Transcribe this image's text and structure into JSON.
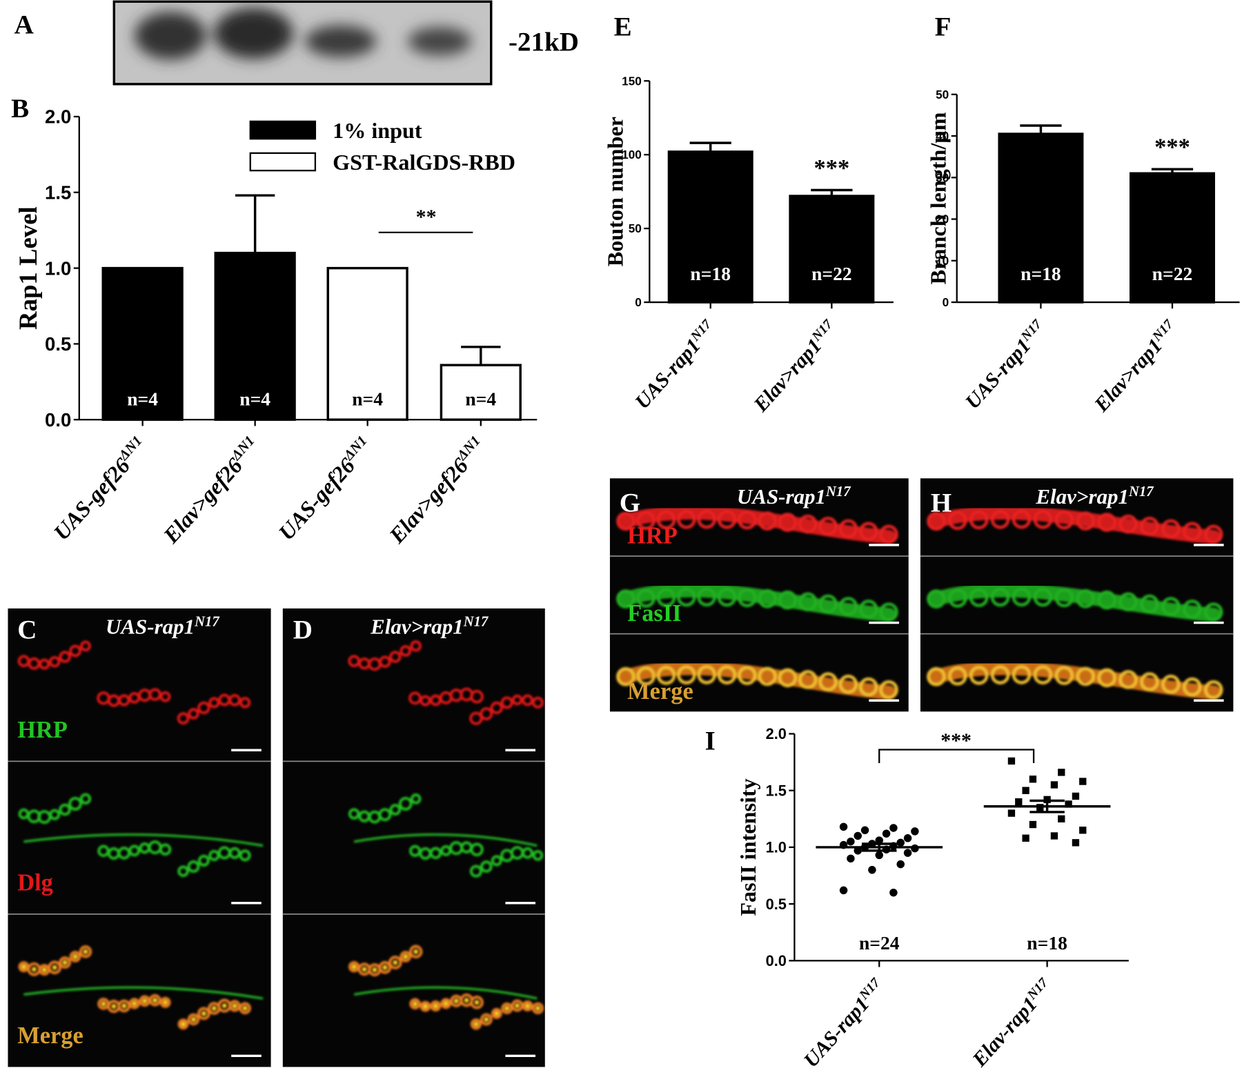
{
  "panel_letters": [
    "A",
    "B",
    "C",
    "D",
    "E",
    "F",
    "G",
    "H",
    "I"
  ],
  "blot": {
    "marker": "-21kD"
  },
  "images": [
    {
      "title": "UAS-rap1",
      "title_sup": "N17",
      "channels": [
        "HRP",
        "Dlg",
        "Merge"
      ]
    },
    {
      "title": "Elav>rap1",
      "title_sup": "N17"
    },
    {
      "title": "UAS-rap1",
      "title_sup": "N17",
      "channels": [
        "HRP",
        "FasII",
        "Merge"
      ]
    },
    {
      "title": "Elav>rap1",
      "title_sup": "N17"
    }
  ],
  "chart_data": [
    {
      "type": "bar",
      "ylabel": "Rap1 Level",
      "categories": [
        "UAS-gef26",
        "Elav>gef26",
        "UAS-gef26",
        "Elav>gef26"
      ],
      "category_sup": [
        "ΔN1",
        "ΔN1",
        "ΔN1",
        "ΔN1"
      ],
      "series": [
        {
          "name": "1% input",
          "color": "#000000",
          "values": [
            1.0,
            1.1,
            null,
            null
          ],
          "errors": [
            null,
            0.38,
            null,
            null
          ]
        },
        {
          "name": "GST-RalGDS-RBD",
          "color": "#ffffff",
          "values": [
            null,
            null,
            1.0,
            0.36
          ],
          "errors": [
            null,
            null,
            null,
            0.12
          ]
        }
      ],
      "n_labels": [
        "n=4",
        "n=4",
        "n=4",
        "n=4"
      ],
      "significance": "**",
      "ylim": [
        0,
        2.0
      ],
      "yticks": [
        {
          "value": 0,
          "label": "0.0"
        },
        {
          "value": 0.5,
          "label": "0.5"
        },
        {
          "value": 1.0,
          "label": "1.0"
        },
        {
          "value": 1.5,
          "label": "1.5"
        },
        {
          "value": 2.0,
          "label": "2.0"
        }
      ],
      "legend": "top-right"
    },
    {
      "type": "bar",
      "ylabel": "Bouton number",
      "categories": [
        "UAS-rap1",
        "Elav>rap1"
      ],
      "category_sup": [
        "N17",
        "N17"
      ],
      "series": [
        {
          "color": "#000000",
          "values": [
            102,
            72
          ],
          "errors": [
            6,
            4
          ]
        }
      ],
      "n_labels": [
        "n=18",
        "n=22"
      ],
      "significance": "***",
      "ylim": [
        0,
        150
      ],
      "yticks": [
        0,
        50,
        100,
        150
      ]
    },
    {
      "type": "bar",
      "ylabel": "Branch length/μm",
      "categories": [
        "UAS-rap1",
        "Elav>rap1"
      ],
      "category_sup": [
        "N17",
        "N17"
      ],
      "series": [
        {
          "color": "#000000",
          "values": [
            40.5,
            31
          ],
          "errors": [
            2,
            1
          ]
        }
      ],
      "n_labels": [
        "n=18",
        "n=22"
      ],
      "significance": "***",
      "ylim": [
        0,
        50
      ],
      "yticks": [
        0,
        10,
        20,
        30,
        40,
        50
      ]
    },
    {
      "type": "dotplot",
      "ylabel": "FasII intensity",
      "categories": [
        "UAS-rap1",
        "Elav-rap1"
      ],
      "category_sup": [
        "N17",
        "N17"
      ],
      "groups": [
        {
          "marker": "circle",
          "color": "#000000",
          "mean": 1.0,
          "sem": 0.03,
          "values": [
            1.18,
            1.17,
            1.15,
            1.14,
            1.12,
            1.1,
            1.08,
            1.06,
            1.05,
            1.04,
            1.03,
            1.02,
            1.01,
            1.0,
            0.99,
            0.98,
            0.97,
            0.95,
            0.93,
            0.9,
            0.85,
            0.8,
            0.62,
            0.6
          ]
        },
        {
          "marker": "square",
          "color": "#000000",
          "mean": 1.36,
          "sem": 0.05,
          "values": [
            1.76,
            1.66,
            1.6,
            1.58,
            1.55,
            1.5,
            1.45,
            1.42,
            1.4,
            1.38,
            1.35,
            1.3,
            1.25,
            1.2,
            1.15,
            1.1,
            1.08,
            1.04
          ]
        }
      ],
      "n_labels": [
        "n=24",
        "n=18"
      ],
      "significance": "***",
      "ylim": [
        0,
        2.0
      ],
      "yticks": [
        {
          "value": 0,
          "label": "0.0"
        },
        {
          "value": 0.5,
          "label": "0.5"
        },
        {
          "value": 1.0,
          "label": "1.0"
        },
        {
          "value": 1.5,
          "label": "1.5"
        },
        {
          "value": 2.0,
          "label": "2.0"
        }
      ]
    }
  ]
}
